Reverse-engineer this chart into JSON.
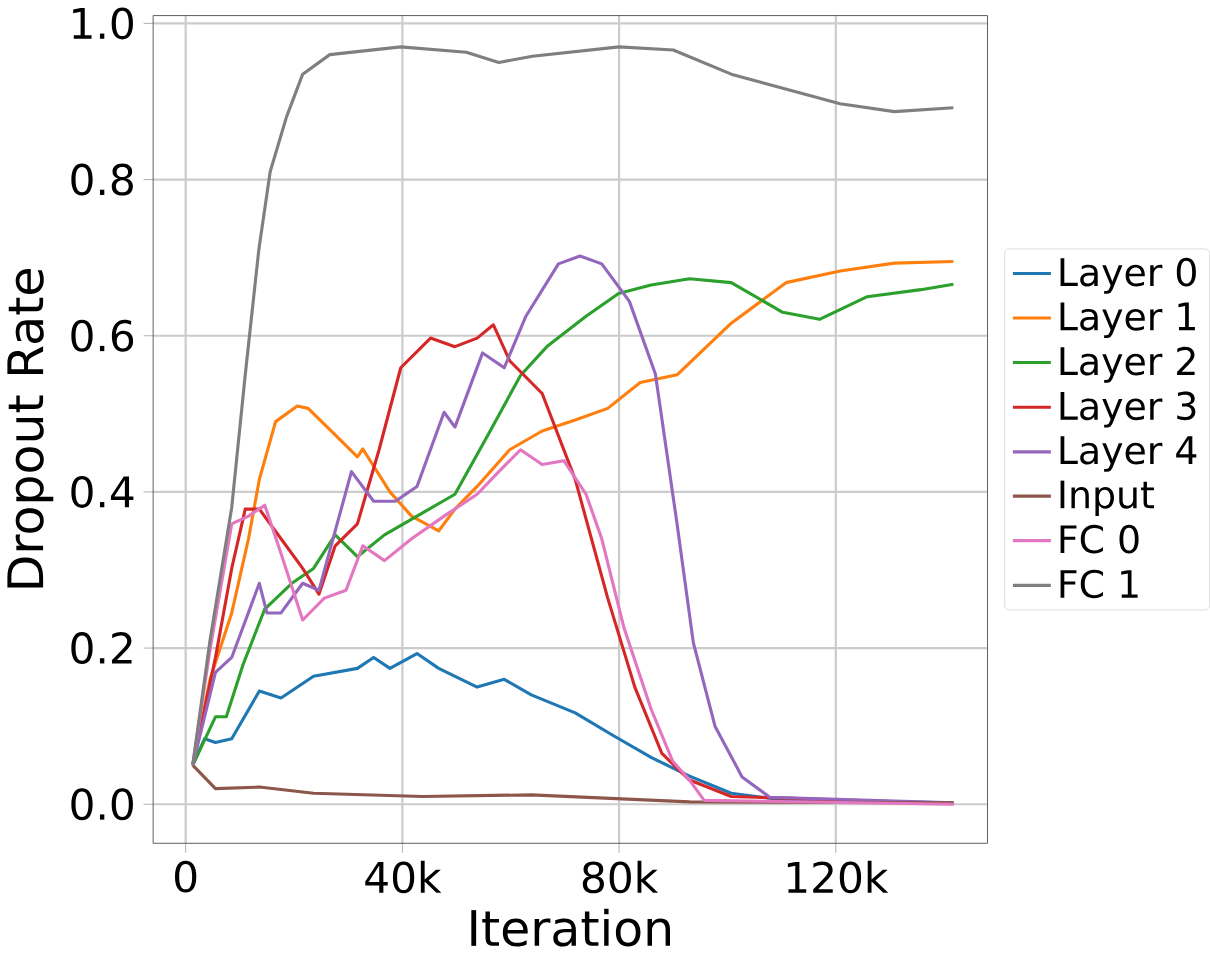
{
  "chart_data": {
    "type": "line",
    "xlabel": "Iteration",
    "ylabel": "Dropout Rate",
    "xlim": [
      -6000,
      148000
    ],
    "ylim": [
      -0.05,
      1.01
    ],
    "xticks": [
      0,
      {
        "value": 40000,
        "label": "40k"
      },
      {
        "value": 80000,
        "label": "80k"
      },
      {
        "value": 120000,
        "label": "120k"
      }
    ],
    "yticks": [
      {
        "value": 0,
        "label": "0.0"
      },
      {
        "value": 0.2,
        "label": "0.2"
      },
      {
        "value": 0.4,
        "label": "0.4"
      },
      {
        "value": 0.6,
        "label": "0.6"
      },
      {
        "value": 0.8,
        "label": "0.8"
      },
      {
        "value": 1,
        "label": "1.0"
      }
    ],
    "grid": true,
    "legend": "right",
    "marker": "none",
    "line_style": "solid",
    "series": [
      {
        "name": "Layer 0",
        "color": "#1f77b4",
        "x": [
          1300,
          3500,
          5500,
          8500,
          13600,
          17600,
          23600,
          31700,
          34700,
          37700,
          42700,
          46700,
          53800,
          58800,
          63800,
          71900,
          78900,
          85900,
          93000,
          100700,
          110800,
          141700
        ],
        "values": [
          0.05,
          0.084,
          0.079,
          0.084,
          0.145,
          0.136,
          0.164,
          0.174,
          0.188,
          0.174,
          0.193,
          0.174,
          0.15,
          0.16,
          0.14,
          0.117,
          0.088,
          0.06,
          0.036,
          0.014,
          0.005,
          0.002
        ]
      },
      {
        "name": "Layer 1",
        "color": "#ff7f0e",
        "x": [
          1300,
          4500,
          8500,
          11600,
          13600,
          16600,
          20600,
          22600,
          27600,
          31700,
          32700,
          37700,
          41700,
          46700,
          49700,
          53800,
          59800,
          65800,
          71900,
          77900,
          83900,
          90700,
          100700,
          110800,
          120800,
          130800,
          141700
        ],
        "values": [
          0.05,
          0.16,
          0.245,
          0.34,
          0.416,
          0.49,
          0.51,
          0.507,
          0.473,
          0.445,
          0.455,
          0.4,
          0.369,
          0.35,
          0.378,
          0.407,
          0.454,
          0.478,
          0.492,
          0.507,
          0.54,
          0.55,
          0.616,
          0.668,
          0.683,
          0.693,
          0.695
        ]
      },
      {
        "name": "Layer 2",
        "color": "#2ca02c",
        "x": [
          1300,
          5500,
          7500,
          10600,
          14600,
          19600,
          23600,
          27600,
          31700,
          36700,
          42700,
          49700,
          55800,
          61800,
          66800,
          73900,
          79900,
          85900,
          93000,
          100700,
          110200,
          117000,
          125800,
          135700,
          141700
        ],
        "values": [
          0.05,
          0.112,
          0.112,
          0.179,
          0.25,
          0.283,
          0.302,
          0.345,
          0.317,
          0.345,
          0.369,
          0.397,
          0.473,
          0.549,
          0.587,
          0.625,
          0.654,
          0.665,
          0.673,
          0.668,
          0.63,
          0.621,
          0.65,
          0.659,
          0.666
        ]
      },
      {
        "name": "Layer 3",
        "color": "#d62728",
        "x": [
          1300,
          5500,
          8500,
          11000,
          13600,
          17600,
          21600,
          24600,
          27600,
          31700,
          35700,
          39700,
          45200,
          49700,
          53800,
          56800,
          59800,
          65800,
          71900,
          77900,
          82900,
          87900,
          93000,
          100700,
          141700
        ],
        "values": [
          0.05,
          0.188,
          0.302,
          0.378,
          0.378,
          0.34,
          0.302,
          0.269,
          0.331,
          0.359,
          0.454,
          0.559,
          0.597,
          0.586,
          0.597,
          0.614,
          0.568,
          0.526,
          0.416,
          0.264,
          0.15,
          0.065,
          0.031,
          0.01,
          0.001
        ]
      },
      {
        "name": "Layer 4",
        "color": "#9467bd",
        "x": [
          1300,
          5500,
          8500,
          13600,
          15000,
          17600,
          21600,
          24600,
          27600,
          30600,
          34700,
          38700,
          42700,
          47700,
          49700,
          54800,
          58800,
          62800,
          68800,
          72800,
          76800,
          81900,
          86700,
          90700,
          93700,
          97700,
          102700,
          107800,
          141700
        ],
        "values": [
          0.05,
          0.169,
          0.188,
          0.283,
          0.245,
          0.245,
          0.283,
          0.274,
          0.35,
          0.426,
          0.388,
          0.388,
          0.407,
          0.502,
          0.483,
          0.578,
          0.559,
          0.625,
          0.692,
          0.702,
          0.692,
          0.644,
          0.551,
          0.359,
          0.207,
          0.1,
          0.035,
          0.009,
          0.002
        ]
      },
      {
        "name": "Input",
        "color": "#8c564b",
        "x": [
          1300,
          5500,
          13600,
          23600,
          43700,
          63800,
          93000,
          141700
        ],
        "values": [
          0.05,
          0.02,
          0.022,
          0.014,
          0.01,
          0.012,
          0.003,
          0.002
        ]
      },
      {
        "name": "FC 0",
        "color": "#e377c2",
        "x": [
          1300,
          4500,
          8500,
          11600,
          14600,
          17600,
          21600,
          25600,
          29600,
          32700,
          36700,
          41700,
          47700,
          53800,
          57800,
          61800,
          65800,
          69800,
          73900,
          76800,
          80900,
          85900,
          89900,
          93000,
          95700,
          141700
        ],
        "values": [
          0.05,
          0.198,
          0.359,
          0.369,
          0.383,
          0.321,
          0.236,
          0.264,
          0.274,
          0.331,
          0.312,
          0.34,
          0.369,
          0.397,
          0.426,
          0.454,
          0.435,
          0.44,
          0.397,
          0.34,
          0.226,
          0.122,
          0.055,
          0.031,
          0.005,
          0
        ]
      },
      {
        "name": "FC 1",
        "color": "#7f7f7f",
        "x": [
          1300,
          4500,
          8500,
          11000,
          13500,
          15600,
          18600,
          21600,
          26600,
          39700,
          51800,
          57800,
          64000,
          80000,
          90000,
          100700,
          120800,
          130800,
          141700
        ],
        "values": [
          0.05,
          0.21,
          0.38,
          0.55,
          0.71,
          0.81,
          0.88,
          0.935,
          0.96,
          0.97,
          0.963,
          0.95,
          0.958,
          0.97,
          0.966,
          0.935,
          0.897,
          0.887,
          0.892
        ]
      }
    ]
  }
}
